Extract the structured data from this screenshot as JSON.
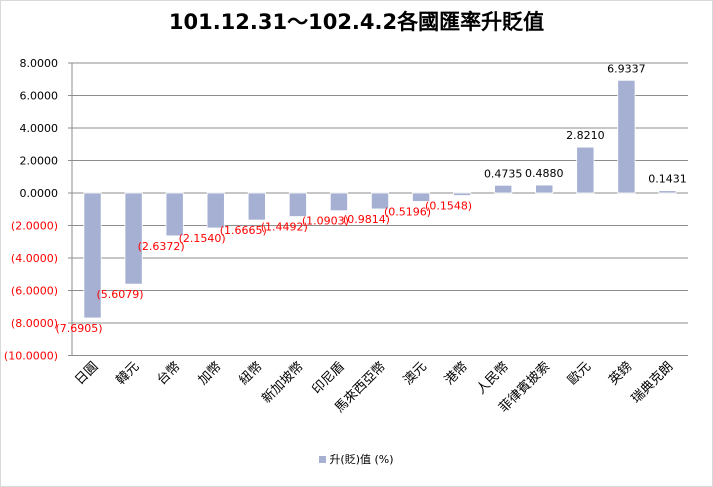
{
  "chart_data": {
    "type": "bar",
    "title": "101.12.31～102.4.2各國匯率升貶值",
    "categories": [
      "日圓",
      "韓元",
      "台幣",
      "加幣",
      "紐幣",
      "新加坡幣",
      "印尼盾",
      "馬來西亞幣",
      "澳元",
      "港幣",
      "人民幣",
      "菲律賓披索",
      "歐元",
      "英鎊",
      "瑞典克朗"
    ],
    "series": [
      {
        "name": "升(貶)值 (%)",
        "values": [
          -7.6905,
          -5.6079,
          -2.6372,
          -2.154,
          -1.6665,
          -1.4492,
          -1.0903,
          -0.9814,
          -0.5196,
          -0.1548,
          0.4735,
          0.488,
          2.821,
          6.9337,
          0.1431
        ],
        "data_labels": [
          "(7.6905)",
          "(5.6079)",
          "(2.6372)",
          "(2.1540)",
          "(1.6665)",
          "(1.4492)",
          "(1.0903)",
          "(0.9814)",
          "(0.5196)",
          "(0.1548)",
          "0.4735",
          "0.4880",
          "2.8210",
          "6.9337",
          "0.1431"
        ]
      }
    ],
    "ylim": [
      -10,
      8
    ],
    "yticks": [
      8,
      6,
      4,
      2,
      0,
      -2,
      -4,
      -6,
      -8,
      -10
    ],
    "ytick_labels": [
      "8.0000",
      "6.0000",
      "4.0000",
      "2.0000",
      "0.0000",
      "(2.0000)",
      "(4.0000)",
      "(6.0000)",
      "(8.0000)",
      "(10.0000)"
    ],
    "grid": true,
    "legend_position": "bottom",
    "colors": {
      "bar": "#a5b0d3",
      "bar_edge": "#ffffff",
      "grid": "#8c8c8c",
      "negative_text": "#ff0000",
      "positive_text": "#000000"
    }
  }
}
